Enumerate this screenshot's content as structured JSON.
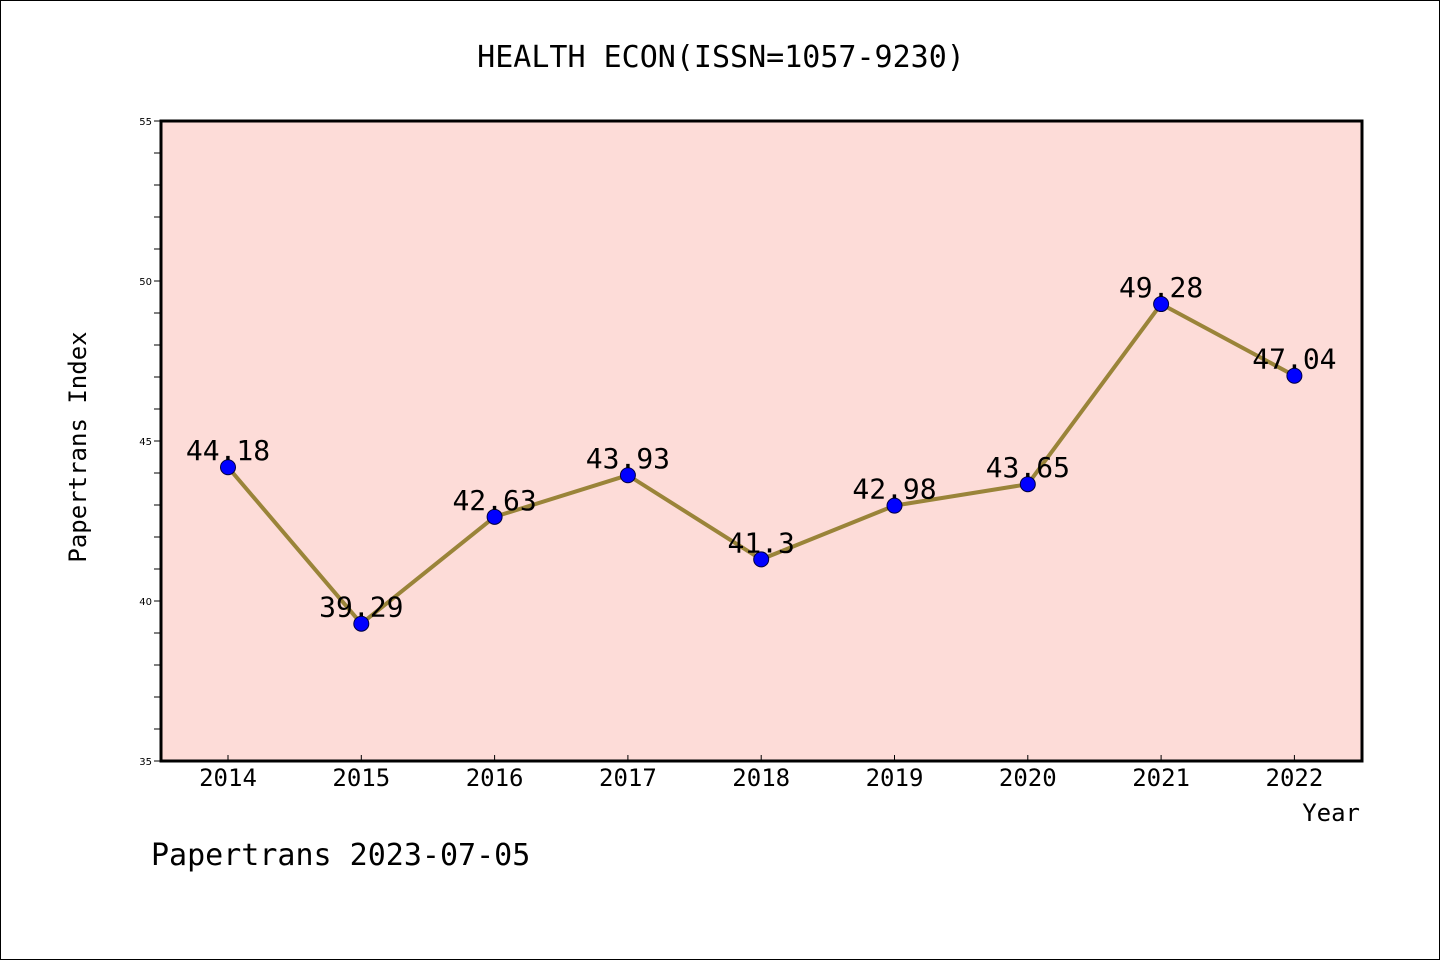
{
  "chart_data": {
    "type": "line",
    "title": "HEALTH ECON(ISSN=1057-9230)",
    "xlabel": "Year",
    "ylabel": "Papertrans Index",
    "categories": [
      "2014",
      "2015",
      "2016",
      "2017",
      "2018",
      "2019",
      "2020",
      "2021",
      "2022"
    ],
    "values": [
      44.18,
      39.29,
      42.63,
      43.93,
      41.3,
      42.98,
      43.65,
      49.28,
      47.04
    ],
    "data_labels": [
      "44.18",
      "39.29",
      "42.63",
      "43.93",
      "41.3",
      "42.98",
      "43.65",
      "49.28",
      "47.04"
    ],
    "ylim": [
      35,
      55
    ],
    "yticks": [
      "35",
      "40",
      "45",
      "50",
      "55"
    ],
    "grid": false,
    "colors": {
      "plot_background": "#fddcd8",
      "line": "#9a8439",
      "marker": "#0000ff"
    }
  },
  "footer": "Papertrans 2023-07-05"
}
